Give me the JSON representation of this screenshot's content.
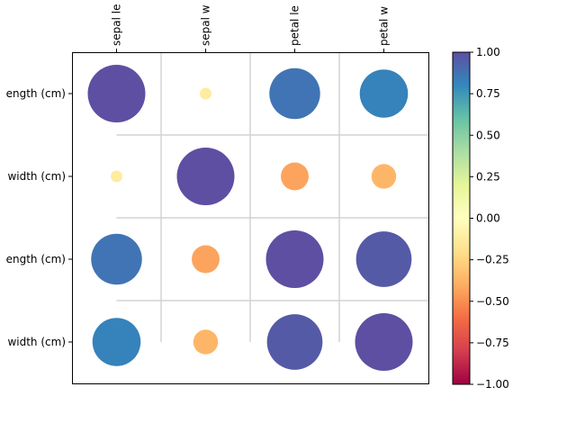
{
  "chart_data": {
    "type": "heatmap",
    "subtype": "correlation-bubble",
    "rows": [
      "sepal length (cm)",
      "sepal width (cm)",
      "petal length (cm)",
      "petal width (cm)"
    ],
    "columns": [
      "sepal length (cm)",
      "sepal width (cm)",
      "petal length (cm)",
      "petal width (cm)"
    ],
    "row_labels_visible": [
      "ength (cm)",
      "width (cm)",
      "ength (cm)",
      "width (cm)"
    ],
    "column_labels_visible": [
      "sepal le",
      "sepal w",
      "petal le",
      "petal w"
    ],
    "values": [
      [
        1.0,
        -0.12,
        0.87,
        0.82
      ],
      [
        -0.12,
        1.0,
        -0.43,
        -0.37
      ],
      [
        0.87,
        -0.43,
        1.0,
        0.96
      ],
      [
        0.82,
        -0.37,
        0.96,
        1.0
      ]
    ],
    "colormap": "Spectral",
    "vmin": -1.0,
    "vmax": 1.0,
    "colorbar": {
      "ticks": [
        1.0,
        0.75,
        0.5,
        0.25,
        0.0,
        -0.25,
        -0.5,
        -0.75,
        -1.0
      ],
      "tick_labels": [
        "1.00",
        "0.75",
        "0.50",
        "0.25",
        "0.00",
        "−0.25",
        "−0.50",
        "−0.75",
        "−1.00"
      ]
    },
    "grid": true,
    "xlabel": "",
    "ylabel": "",
    "title": ""
  }
}
